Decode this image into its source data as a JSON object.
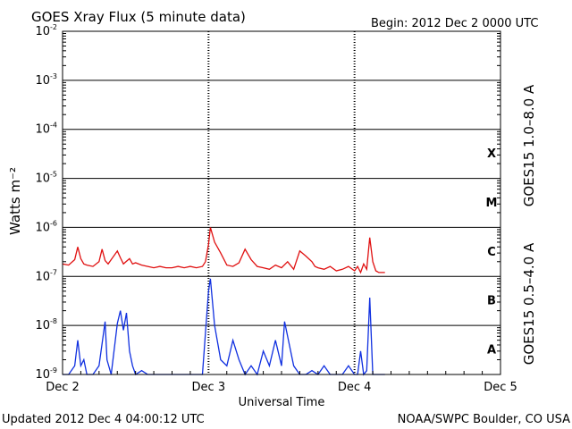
{
  "header": {
    "title": "GOES Xray Flux (5 minute data)",
    "begin": "Begin:  2012 Dec 2 0000 UTC"
  },
  "footer": {
    "updated": "Updated 2012 Dec  4 04:00:12 UTC",
    "source": "NOAA/SWPC Boulder, CO USA"
  },
  "chart_data": {
    "type": "line",
    "title": "GOES Xray Flux (5 minute data)",
    "xlabel": "Universal Time",
    "ylabel": "Watts m⁻²",
    "yscale": "log",
    "ylim": [
      1e-09,
      0.01
    ],
    "xlim": [
      0,
      72
    ],
    "x_unit": "hours since 2012 Dec 2 0000 UTC",
    "x_tick_labels": [
      "Dec 2",
      "Dec 3",
      "Dec 4",
      "Dec 5"
    ],
    "y_tick_exponents": [
      "-9",
      "-8",
      "-7",
      "-6",
      "-5",
      "-4",
      "-3",
      "-2"
    ],
    "flare_classes": [
      "A",
      "B",
      "C",
      "M",
      "X"
    ],
    "grid": true,
    "series": [
      {
        "name": "GOES15 1.0–8.0 A",
        "color": "#e01010",
        "x": [
          0,
          1,
          2,
          2.5,
          3,
          3.5,
          4,
          5,
          6,
          6.5,
          7,
          7.5,
          8,
          9,
          9.5,
          10,
          11,
          11.5,
          12,
          13,
          14,
          15,
          16,
          17,
          18,
          19,
          20,
          21,
          22,
          23,
          23.5,
          24,
          24.3,
          25,
          26,
          27,
          28,
          29,
          30,
          31,
          32,
          33,
          34,
          35,
          36,
          37,
          38,
          39,
          40,
          41,
          41.5,
          42,
          43,
          44,
          45,
          46,
          47,
          48,
          48.5,
          49,
          49.5,
          50,
          50.5,
          51,
          51.5,
          52,
          53
        ],
        "y": [
          1.8e-07,
          1.7e-07,
          2.2e-07,
          4e-07,
          2.3e-07,
          1.8e-07,
          1.7e-07,
          1.6e-07,
          2e-07,
          3.6e-07,
          2.1e-07,
          1.8e-07,
          2.2e-07,
          3.3e-07,
          2.4e-07,
          1.8e-07,
          2.3e-07,
          1.8e-07,
          1.9e-07,
          1.7e-07,
          1.6e-07,
          1.5e-07,
          1.6e-07,
          1.5e-07,
          1.5e-07,
          1.6e-07,
          1.5e-07,
          1.6e-07,
          1.5e-07,
          1.6e-07,
          2e-07,
          4.5e-07,
          1e-06,
          5e-07,
          3e-07,
          1.7e-07,
          1.6e-07,
          1.9e-07,
          3.6e-07,
          2.2e-07,
          1.6e-07,
          1.5e-07,
          1.4e-07,
          1.7e-07,
          1.5e-07,
          2e-07,
          1.4e-07,
          3.3e-07,
          2.6e-07,
          2e-07,
          1.6e-07,
          1.5e-07,
          1.4e-07,
          1.6e-07,
          1.3e-07,
          1.4e-07,
          1.6e-07,
          1.3e-07,
          1.6e-07,
          1.2e-07,
          1.8e-07,
          1.4e-07,
          6.2e-07,
          2e-07,
          1.3e-07,
          1.2e-07,
          1.2e-07
        ]
      },
      {
        "name": "GOES15 0.5–4.0 A",
        "color": "#1030e0",
        "x": [
          0,
          1,
          2,
          2.5,
          3,
          3.5,
          4,
          5,
          6,
          7,
          7.3,
          8,
          9,
          9.5,
          10,
          10.5,
          11,
          11.5,
          12,
          13,
          14,
          15,
          16,
          17,
          18,
          19,
          20,
          21,
          22,
          23,
          24,
          24.3,
          25,
          26,
          27,
          28,
          29,
          30,
          31,
          32,
          33,
          34,
          35,
          36,
          36.5,
          37,
          38,
          39,
          40,
          41,
          42,
          43,
          44,
          45,
          46,
          47,
          48,
          48.5,
          49,
          49.5,
          50,
          50.5,
          51,
          52,
          53
        ],
        "y": [
          1e-09,
          1e-09,
          1.5e-09,
          5e-09,
          1.5e-09,
          2e-09,
          1e-09,
          1e-09,
          1.5e-09,
          1.2e-08,
          2e-09,
          1e-09,
          1.1e-08,
          2e-08,
          8e-09,
          1.8e-08,
          3e-09,
          1.5e-09,
          1e-09,
          1.2e-09,
          1e-09,
          1e-09,
          1e-09,
          1e-09,
          1e-09,
          1e-09,
          1e-09,
          1e-09,
          1e-09,
          1e-09,
          5e-08,
          9e-08,
          1e-08,
          2e-09,
          1.5e-09,
          5e-09,
          2e-09,
          1e-09,
          1.5e-09,
          1e-09,
          3e-09,
          1.5e-09,
          5e-09,
          1.5e-09,
          1.2e-08,
          6e-09,
          1.5e-09,
          1e-09,
          1e-09,
          1.2e-09,
          1e-09,
          1.5e-09,
          1e-09,
          1e-09,
          1e-09,
          1.5e-09,
          1e-09,
          1e-09,
          3e-09,
          1e-09,
          1.2e-09,
          3.7e-08,
          1e-09,
          1e-09,
          1e-09
        ]
      }
    ]
  }
}
